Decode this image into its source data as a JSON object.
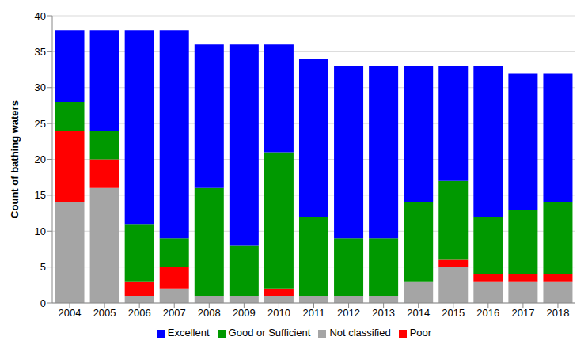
{
  "chart_data": {
    "type": "bar",
    "y_label": "Count of bathing waters",
    "categories": [
      "2004",
      "2005",
      "2006",
      "2007",
      "2008",
      "2009",
      "2010",
      "2011",
      "2012",
      "2013",
      "2014",
      "2015",
      "2016",
      "2017",
      "2018"
    ],
    "series": [
      {
        "name": "Not classified",
        "color": "#a5a5a5",
        "values": [
          14,
          16,
          1,
          2,
          1,
          1,
          1,
          1,
          1,
          1,
          3,
          5,
          3,
          3,
          3
        ]
      },
      {
        "name": "Poor",
        "color": "#ff0000",
        "values": [
          10,
          4,
          2,
          3,
          0,
          0,
          1,
          0,
          0,
          0,
          0,
          1,
          1,
          1,
          1
        ]
      },
      {
        "name": "Good or Sufficient",
        "color": "#009900",
        "values": [
          4,
          4,
          8,
          4,
          15,
          7,
          19,
          11,
          8,
          8,
          11,
          11,
          8,
          9,
          10
        ]
      },
      {
        "name": "Excellent",
        "color": "#0000ff",
        "values": [
          10,
          14,
          27,
          29,
          20,
          28,
          15,
          22,
          24,
          24,
          19,
          16,
          21,
          19,
          18
        ]
      }
    ],
    "ylim": [
      0,
      40
    ],
    "yticks": [
      0,
      5,
      10,
      15,
      20,
      25,
      30,
      35,
      40
    ],
    "stacked": true,
    "grid": true,
    "legend": "bottom"
  }
}
